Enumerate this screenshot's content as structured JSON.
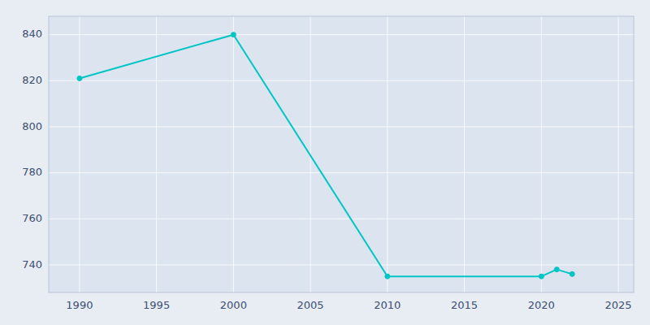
{
  "chart_data": {
    "type": "line",
    "x": [
      1990,
      2000,
      2010,
      2020,
      2021,
      2022
    ],
    "values": [
      821,
      840,
      735,
      735,
      738,
      736
    ],
    "color": "#00C5C5",
    "marker": "circle",
    "xlim": [
      1988,
      2026
    ],
    "ylim": [
      728,
      848
    ],
    "xticks": [
      1990,
      1995,
      2000,
      2005,
      2010,
      2015,
      2020,
      2025
    ],
    "yticks": [
      740,
      760,
      780,
      800,
      820,
      840
    ],
    "grid": true
  }
}
